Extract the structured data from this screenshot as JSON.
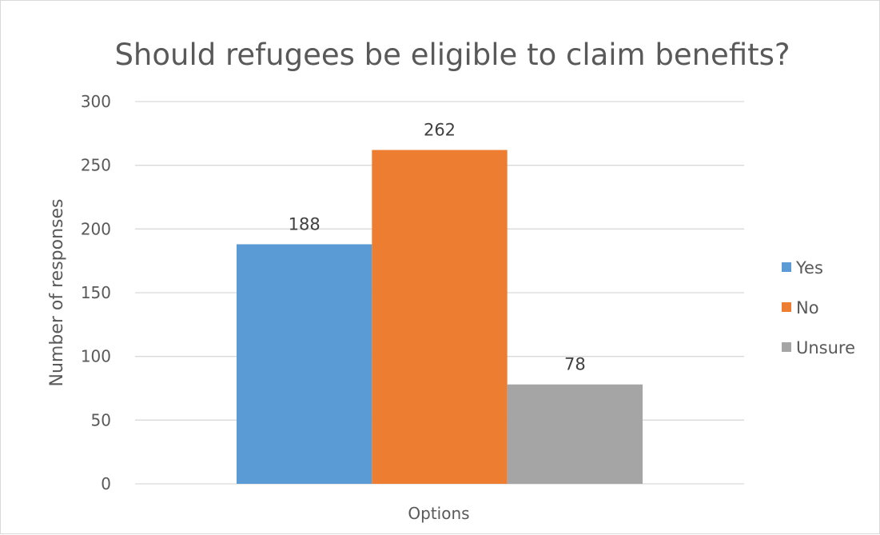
{
  "chart_data": {
    "type": "bar",
    "title": "Should refugees be eligible to claim benefits?",
    "xlabel": "Options",
    "ylabel": "Number of responses",
    "ylim": [
      0,
      300
    ],
    "yticks": [
      0,
      50,
      100,
      150,
      200,
      250,
      300
    ],
    "grid": true,
    "legend_position": "right",
    "categories": [
      "Options"
    ],
    "series": [
      {
        "name": "Yes",
        "values": [
          188
        ],
        "color": "#5b9bd5"
      },
      {
        "name": "No",
        "values": [
          262
        ],
        "color": "#ed7d31"
      },
      {
        "name": "Unsure",
        "values": [
          78
        ],
        "color": "#a5a5a5"
      }
    ]
  }
}
